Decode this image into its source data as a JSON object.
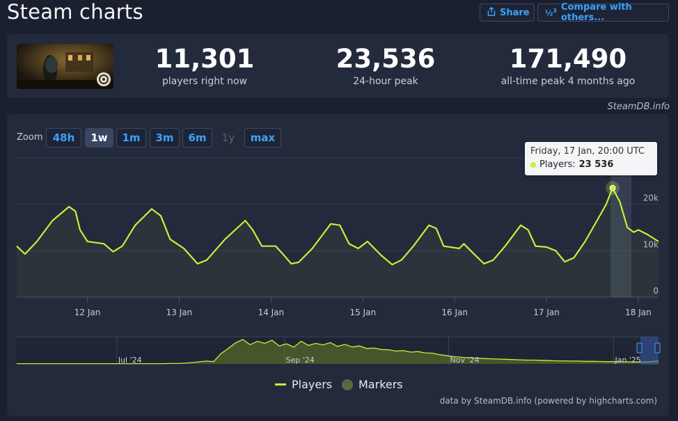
{
  "header": {
    "title": "Steam charts",
    "share_label": "Share",
    "compare_label": "Compare with others..."
  },
  "stats": [
    {
      "value": "11,301",
      "label": "players right now"
    },
    {
      "value": "23,536",
      "label": "24-hour peak"
    },
    {
      "value": "171,490",
      "label": "all-time peak 4 months ago"
    }
  ],
  "credit_top": "SteamDB.info",
  "zoom": {
    "label": "Zoom",
    "options": [
      "48h",
      "1w",
      "1m",
      "3m",
      "6m",
      "1y",
      "max"
    ],
    "active": "1w",
    "disabled": "1y"
  },
  "tooltip": {
    "date": "Friday, 17 Jan, 20:00 UTC",
    "series_label": "Players:",
    "value": "23 536"
  },
  "legend": {
    "players": "Players",
    "markers": "Markers"
  },
  "credit_bottom": "data by SteamDB.info (powered by highcharts.com)",
  "colors": {
    "line": "#c6f13b",
    "accent": "#3aa3ff",
    "marker": "#5a6840"
  },
  "chart_data": [
    {
      "type": "line",
      "series": [
        {
          "name": "Players",
          "color": "#c6f13b"
        }
      ],
      "x_ticks": [
        "12 Jan",
        "13 Jan",
        "14 Jan",
        "15 Jan",
        "16 Jan",
        "17 Jan",
        "18 Jan"
      ],
      "x_start_day": 11.23,
      "x_end_day": 18.22,
      "y_ticks": [
        "0",
        "10k",
        "20k"
      ],
      "ylim": [
        0,
        30000
      ],
      "points": [
        [
          11.23,
          11000
        ],
        [
          11.32,
          9300
        ],
        [
          11.45,
          12000
        ],
        [
          11.62,
          16500
        ],
        [
          11.8,
          19500
        ],
        [
          11.87,
          18500
        ],
        [
          11.92,
          14500
        ],
        [
          12.0,
          12000
        ],
        [
          12.18,
          11500
        ],
        [
          12.28,
          9800
        ],
        [
          12.38,
          11000
        ],
        [
          12.52,
          15500
        ],
        [
          12.7,
          19000
        ],
        [
          12.8,
          17500
        ],
        [
          12.9,
          12500
        ],
        [
          13.05,
          10500
        ],
        [
          13.2,
          7200
        ],
        [
          13.3,
          8000
        ],
        [
          13.5,
          12500
        ],
        [
          13.72,
          16500
        ],
        [
          13.8,
          14500
        ],
        [
          13.9,
          11000
        ],
        [
          14.05,
          11000
        ],
        [
          14.12,
          9500
        ],
        [
          14.22,
          7200
        ],
        [
          14.3,
          7500
        ],
        [
          14.45,
          10500
        ],
        [
          14.65,
          15800
        ],
        [
          14.75,
          15500
        ],
        [
          14.85,
          11500
        ],
        [
          14.95,
          10500
        ],
        [
          15.05,
          12000
        ],
        [
          15.2,
          9000
        ],
        [
          15.32,
          7000
        ],
        [
          15.42,
          8000
        ],
        [
          15.55,
          11000
        ],
        [
          15.72,
          15500
        ],
        [
          15.8,
          14800
        ],
        [
          15.88,
          11000
        ],
        [
          16.05,
          10500
        ],
        [
          16.1,
          11500
        ],
        [
          16.2,
          9500
        ],
        [
          16.32,
          7200
        ],
        [
          16.42,
          8000
        ],
        [
          16.55,
          11000
        ],
        [
          16.72,
          15500
        ],
        [
          16.8,
          14500
        ],
        [
          16.88,
          11000
        ],
        [
          17.0,
          10800
        ],
        [
          17.1,
          10000
        ],
        [
          17.2,
          7600
        ],
        [
          17.3,
          8500
        ],
        [
          17.42,
          12000
        ],
        [
          17.55,
          16500
        ],
        [
          17.65,
          20000
        ],
        [
          17.72,
          23536
        ],
        [
          17.8,
          20500
        ],
        [
          17.88,
          15000
        ],
        [
          17.95,
          14000
        ],
        [
          18.0,
          14500
        ],
        [
          18.1,
          13500
        ],
        [
          18.22,
          12000
        ]
      ]
    },
    {
      "type": "area",
      "name": "navigator",
      "x_ticks": [
        "Jul '24",
        "Sep '24",
        "Nov '24",
        "Jan '25"
      ],
      "values": [
        1000,
        1000,
        1000,
        1000,
        1000,
        1000,
        1000,
        1000,
        1000,
        1000,
        1000,
        1000,
        1000,
        1000,
        1000,
        1000,
        1000,
        1000,
        1000,
        1000,
        1200,
        1500,
        2000,
        3000,
        5000,
        8000,
        11000,
        9000,
        40000,
        60000,
        82000,
        95000,
        75000,
        88000,
        80000,
        92000,
        70000,
        78000,
        65000,
        88000,
        72000,
        80000,
        74000,
        83000,
        68000,
        76000,
        66000,
        70000,
        60000,
        62000,
        56000,
        55000,
        50000,
        52000,
        46000,
        48000,
        43000,
        42000,
        36000,
        32000,
        28000,
        26000,
        24000,
        23000,
        21000,
        20000,
        19000,
        18000,
        17000,
        16000,
        15000,
        15000,
        14000,
        13000,
        12000,
        12000,
        11000,
        11000,
        10000,
        10000,
        9500,
        9000,
        9000,
        8500,
        8000,
        8000,
        7500,
        9000,
        12000
      ],
      "ylim": [
        0,
        100000
      ]
    }
  ]
}
